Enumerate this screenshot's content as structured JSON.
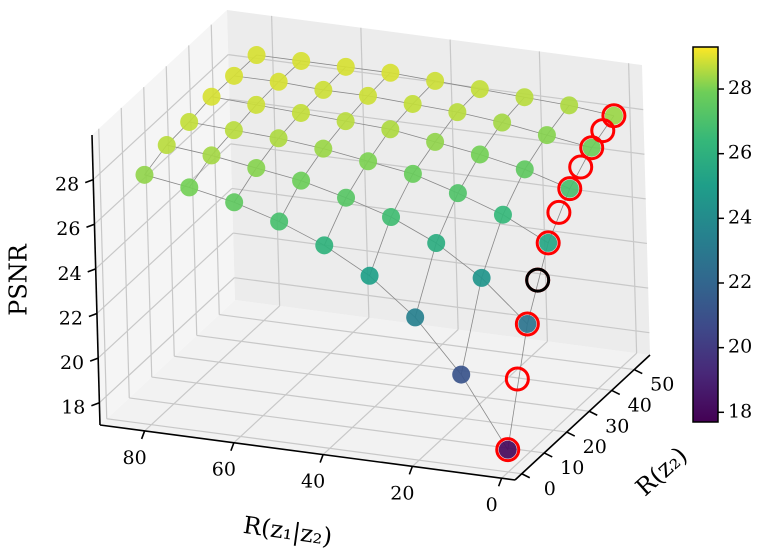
{
  "chart_data": {
    "type": "scatter3d",
    "xlabel": "R(z₁|z₂)",
    "ylabel": "R(z₂)",
    "zlabel": "PSNR",
    "xlim": [
      -3,
      90
    ],
    "ylim": [
      -3,
      57
    ],
    "zlim": [
      17,
      30
    ],
    "xticks": [
      0,
      20,
      40,
      60,
      80
    ],
    "yticks": [
      0,
      10,
      20,
      30,
      40,
      50
    ],
    "zticks": [
      18,
      20,
      22,
      24,
      26,
      28
    ],
    "colormap": "viridis",
    "clim": [
      17.7,
      29.3
    ],
    "cticks": [
      18,
      20,
      22,
      24,
      26,
      28
    ],
    "grid": true,
    "x": [
      80,
      70,
      60,
      50,
      40,
      30,
      20,
      10,
      0,
      80,
      70,
      60,
      50,
      40,
      30,
      20,
      10,
      0,
      80,
      70,
      60,
      50,
      40,
      30,
      20,
      10,
      0,
      80,
      70,
      60,
      50,
      40,
      30,
      20,
      10,
      0,
      80,
      70,
      60,
      50,
      40,
      30,
      20,
      10,
      0,
      80,
      70,
      60,
      50,
      40,
      30,
      20,
      10,
      0
    ],
    "y": [
      50,
      50,
      50,
      50,
      50,
      50,
      50,
      50,
      50,
      40,
      40,
      40,
      40,
      40,
      40,
      40,
      40,
      40,
      30,
      30,
      30,
      30,
      30,
      30,
      30,
      30,
      30,
      20,
      20,
      20,
      20,
      20,
      20,
      20,
      20,
      20,
      10,
      10,
      10,
      10,
      10,
      10,
      10,
      10,
      10,
      0,
      0,
      0,
      0,
      0,
      0,
      0,
      0,
      0
    ],
    "z": [
      28.9,
      28.9,
      28.9,
      28.9,
      28.8,
      28.7,
      28.6,
      28.5,
      28.3,
      28.9,
      28.9,
      28.8,
      28.8,
      28.7,
      28.6,
      28.4,
      28.1,
      27.8,
      28.9,
      28.8,
      28.7,
      28.6,
      28.5,
      28.2,
      27.9,
      27.5,
      26.9,
      28.7,
      28.6,
      28.5,
      28.3,
      28.0,
      27.7,
      27.1,
      26.4,
      25.4,
      28.6,
      28.4,
      28.1,
      27.8,
      27.3,
      26.7,
      25.8,
      24.5,
      22.7,
      28.2,
      27.9,
      27.5,
      26.9,
      26.1,
      25.0,
      23.4,
      21.1,
      18
    ],
    "highlight": {
      "color": "#ff0000",
      "x": [
        0,
        0,
        0,
        0,
        0,
        0,
        0,
        0,
        0,
        0,
        0
      ],
      "y": [
        50,
        45,
        40,
        35,
        30,
        25,
        20,
        15,
        10,
        5,
        0
      ],
      "z": [
        28.3,
        28.1,
        27.8,
        27.4,
        26.9,
        26.3,
        25.4,
        24.2,
        22.7,
        20.7,
        18
      ]
    },
    "selected": {
      "color": "#000000",
      "x": [
        0
      ],
      "y": [
        15
      ],
      "z": [
        24.2
      ]
    }
  }
}
